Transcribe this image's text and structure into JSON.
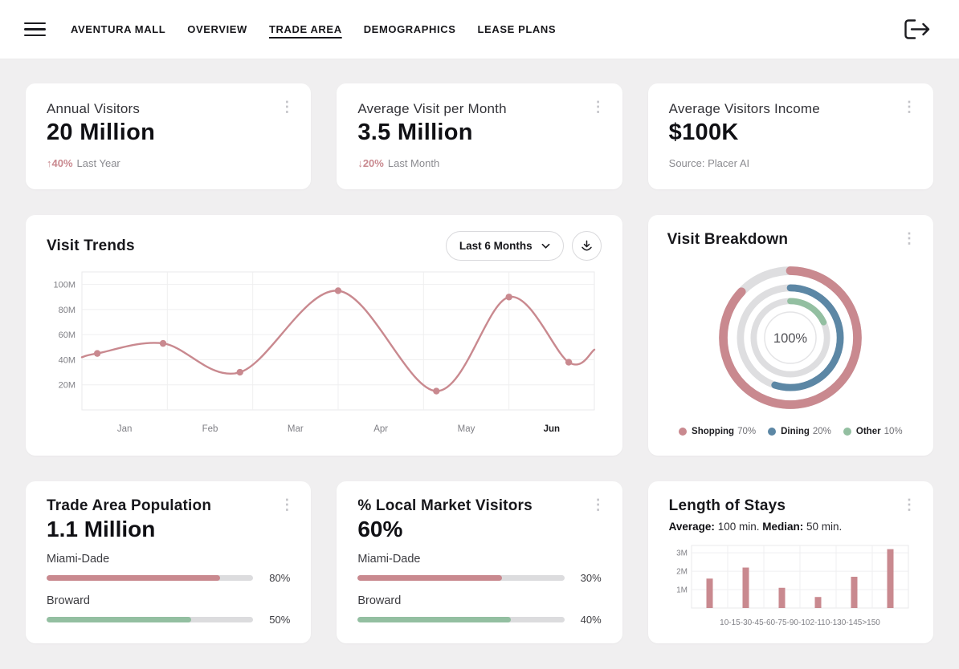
{
  "colors": {
    "pink": "#c9898f",
    "green": "#93bfa1",
    "blue": "#5c87a5",
    "track": "#dcdcde",
    "page_bg": "#f0eff0"
  },
  "icons": {
    "kebab": "⋮"
  },
  "nav": {
    "items": [
      {
        "label": "AVENTURA MALL",
        "active": false
      },
      {
        "label": "OVERVIEW",
        "active": false
      },
      {
        "label": "TRADE AREA",
        "active": true
      },
      {
        "label": "DEMOGRAPHICS",
        "active": false
      },
      {
        "label": "LEASE PLANS",
        "active": false
      }
    ]
  },
  "kpis": [
    {
      "title": "Annual Visitors",
      "value": "20 Million",
      "delta_arrow": "↑",
      "delta_value": "40%",
      "delta_note": "Last Year"
    },
    {
      "title": "Average Visit per Month",
      "value": "3.5 Million",
      "delta_arrow": "↓",
      "delta_value": "20%",
      "delta_note": "Last Month"
    },
    {
      "title": "Average Visitors Income",
      "value": "$100K",
      "source_note": "Source: Placer AI"
    }
  ],
  "population_card": {
    "title": "Trade Area Population",
    "value": "1.1 Million",
    "rows": [
      {
        "label": "Miami-Dade",
        "value": "80%",
        "fill": 84,
        "color": "#c9898f"
      },
      {
        "label": "Broward",
        "value": "50%",
        "fill": 70,
        "color": "#93bfa1"
      }
    ]
  },
  "local_market_card": {
    "title": "% Local Market Visitors",
    "value": "60%",
    "rows": [
      {
        "label": "Miami-Dade",
        "value": "30%",
        "fill": 70,
        "color": "#c9898f"
      },
      {
        "label": "Broward",
        "value": "40%",
        "fill": 74,
        "color": "#93bfa1"
      }
    ]
  },
  "stays_card": {
    "avg_label": "Average:",
    "avg_value": "100 min.",
    "median_label": "Median:",
    "median_value": "50 min."
  },
  "chart_data": [
    {
      "type": "line",
      "title": "Visit Trends",
      "range_selector": "Last 6 Months",
      "x_ticks": [
        "Jan",
        "Feb",
        "Mar",
        "Apr",
        "May",
        "Jun"
      ],
      "x_tick_emphasis": "Jun",
      "y_ticks": [
        {
          "label": "100M",
          "value": 100
        },
        {
          "label": "80M",
          "value": 80
        },
        {
          "label": "60M",
          "value": 60
        },
        {
          "label": "40M",
          "value": 40
        },
        {
          "label": "20M",
          "value": 20
        }
      ],
      "ylim": [
        0,
        110
      ],
      "xlim": [
        0,
        6
      ],
      "unit": "visits (millions)",
      "grid": true,
      "color": "#c9898f",
      "points": [
        {
          "x": 0.0,
          "y": 42,
          "dot": false
        },
        {
          "x": 0.18,
          "y": 45,
          "dot": true
        },
        {
          "x": 0.95,
          "y": 53,
          "dot": true
        },
        {
          "x": 1.85,
          "y": 30,
          "dot": true
        },
        {
          "x": 3.0,
          "y": 95,
          "dot": true
        },
        {
          "x": 4.15,
          "y": 15,
          "dot": true
        },
        {
          "x": 5.0,
          "y": 90,
          "dot": true
        },
        {
          "x": 5.7,
          "y": 38,
          "dot": true
        },
        {
          "x": 6.0,
          "y": 48,
          "dot": false
        }
      ]
    },
    {
      "type": "donut",
      "title": "Visit Breakdown",
      "center_label": "100%",
      "track_color": "#dedee0",
      "segments": [
        {
          "name": "Shopping",
          "value": 70,
          "pct_label": "70%",
          "color": "#c9898f",
          "arc_pct": 87
        },
        {
          "name": "Dining",
          "value": 20,
          "pct_label": "20%",
          "color": "#5c87a5",
          "arc_pct": 55
        },
        {
          "name": "Other",
          "value": 10,
          "pct_label": "10%",
          "color": "#93bfa1",
          "arc_pct": 18
        }
      ]
    },
    {
      "type": "bar",
      "title": "Length of Stays",
      "x_axis_text": "10-15-30-45-60-75-90-102-110-130-145>150",
      "bucket_labels_min": [
        "10",
        "15",
        "30",
        "45",
        "60",
        "75",
        "90",
        "102",
        "110",
        "130",
        "145",
        ">150"
      ],
      "values": [
        1.6,
        2.2,
        1.1,
        0.6,
        1.7,
        3.2
      ],
      "unit": "M visits",
      "y_ticks": [
        {
          "label": "3M",
          "value": 3
        },
        {
          "label": "2M",
          "value": 2
        },
        {
          "label": "1M",
          "value": 1
        }
      ],
      "ylim": [
        0,
        3.4
      ],
      "color": "#c9898f"
    }
  ]
}
